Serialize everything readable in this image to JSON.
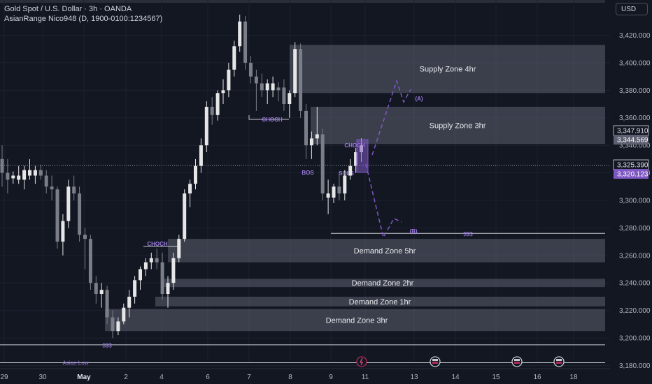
{
  "header": {
    "title": "Gold Spot / U.S. Dollar · 3h · OANDA",
    "indicator": "AsianRange Nico948 (D, 1900-0100:1234567)",
    "currency_button": "USD"
  },
  "chart_data": {
    "type": "candlestick",
    "ylim": [
      3172,
      3442
    ],
    "y_ticks": [
      3180,
      3200,
      3220,
      3240,
      3260,
      3280,
      3300,
      3320,
      3340,
      3360,
      3380,
      3400,
      3420
    ],
    "x_tick_labels": [
      "29",
      "30",
      "May",
      "2",
      "4",
      "6",
      "7",
      "8",
      "9",
      "11",
      "13",
      "14",
      "15",
      "16",
      "18"
    ],
    "price_labels": {
      "last_price": "3,325.390",
      "high_marker": "3,347.910",
      "tag_1": "3,344.569",
      "tag_2": "3,320.123"
    },
    "candles": [
      {
        "o": 3330,
        "h": 3340,
        "l": 3310,
        "c": 3320,
        "hl": false
      },
      {
        "o": 3320,
        "h": 3330,
        "l": 3305,
        "c": 3315,
        "hl": false
      },
      {
        "o": 3316,
        "h": 3321,
        "l": 3312,
        "c": 3318,
        "hl": true
      },
      {
        "o": 3318,
        "h": 3325,
        "l": 3312,
        "c": 3315,
        "hl": true
      },
      {
        "o": 3315,
        "h": 3325,
        "l": 3308,
        "c": 3322,
        "hl": true
      },
      {
        "o": 3322,
        "h": 3330,
        "l": 3315,
        "c": 3318,
        "hl": true
      },
      {
        "o": 3318,
        "h": 3325,
        "l": 3312,
        "c": 3322,
        "hl": true
      },
      {
        "o": 3322,
        "h": 3326,
        "l": 3315,
        "c": 3318,
        "hl": false
      },
      {
        "o": 3318,
        "h": 3322,
        "l": 3305,
        "c": 3310,
        "hl": false
      },
      {
        "o": 3310,
        "h": 3318,
        "l": 3300,
        "c": 3308,
        "hl": false
      },
      {
        "o": 3308,
        "h": 3310,
        "l": 3265,
        "c": 3270,
        "hl": false
      },
      {
        "o": 3270,
        "h": 3290,
        "l": 3260,
        "c": 3285,
        "hl": true
      },
      {
        "o": 3285,
        "h": 3315,
        "l": 3280,
        "c": 3310,
        "hl": true
      },
      {
        "o": 3310,
        "h": 3318,
        "l": 3300,
        "c": 3305,
        "hl": false
      },
      {
        "o": 3305,
        "h": 3310,
        "l": 3270,
        "c": 3275,
        "hl": false
      },
      {
        "o": 3275,
        "h": 3280,
        "l": 3250,
        "c": 3272,
        "hl": false
      },
      {
        "o": 3272,
        "h": 3275,
        "l": 3235,
        "c": 3240,
        "hl": false
      },
      {
        "o": 3240,
        "h": 3245,
        "l": 3225,
        "c": 3232,
        "hl": false
      },
      {
        "o": 3232,
        "h": 3240,
        "l": 3222,
        "c": 3235,
        "hl": true
      },
      {
        "o": 3235,
        "h": 3238,
        "l": 3210,
        "c": 3215,
        "hl": false
      },
      {
        "o": 3215,
        "h": 3220,
        "l": 3200,
        "c": 3205,
        "hl": false
      },
      {
        "o": 3205,
        "h": 3215,
        "l": 3202,
        "c": 3212,
        "hl": true
      },
      {
        "o": 3212,
        "h": 3225,
        "l": 3210,
        "c": 3222,
        "hl": true
      },
      {
        "o": 3222,
        "h": 3235,
        "l": 3215,
        "c": 3230,
        "hl": true
      },
      {
        "o": 3230,
        "h": 3245,
        "l": 3225,
        "c": 3242,
        "hl": true
      },
      {
        "o": 3242,
        "h": 3252,
        "l": 3235,
        "c": 3250,
        "hl": true
      },
      {
        "o": 3250,
        "h": 3258,
        "l": 3245,
        "c": 3255,
        "hl": true
      },
      {
        "o": 3255,
        "h": 3262,
        "l": 3250,
        "c": 3258,
        "hl": true
      },
      {
        "o": 3258,
        "h": 3265,
        "l": 3250,
        "c": 3255,
        "hl": false
      },
      {
        "o": 3255,
        "h": 3262,
        "l": 3228,
        "c": 3232,
        "hl": false
      },
      {
        "o": 3232,
        "h": 3245,
        "l": 3222,
        "c": 3240,
        "hl": true
      },
      {
        "o": 3240,
        "h": 3262,
        "l": 3235,
        "c": 3258,
        "hl": true
      },
      {
        "o": 3258,
        "h": 3275,
        "l": 3255,
        "c": 3272,
        "hl": true
      },
      {
        "o": 3272,
        "h": 3308,
        "l": 3270,
        "c": 3305,
        "hl": true
      },
      {
        "o": 3305,
        "h": 3315,
        "l": 3295,
        "c": 3312,
        "hl": true
      },
      {
        "o": 3312,
        "h": 3330,
        "l": 3308,
        "c": 3325,
        "hl": true
      },
      {
        "o": 3325,
        "h": 3345,
        "l": 3320,
        "c": 3340,
        "hl": true
      },
      {
        "o": 3340,
        "h": 3372,
        "l": 3335,
        "c": 3368,
        "hl": true
      },
      {
        "o": 3368,
        "h": 3375,
        "l": 3355,
        "c": 3362,
        "hl": false
      },
      {
        "o": 3362,
        "h": 3380,
        "l": 3358,
        "c": 3378,
        "hl": true
      },
      {
        "o": 3378,
        "h": 3388,
        "l": 3370,
        "c": 3380,
        "hl": true
      },
      {
        "o": 3380,
        "h": 3400,
        "l": 3375,
        "c": 3395,
        "hl": true
      },
      {
        "o": 3395,
        "h": 3416,
        "l": 3390,
        "c": 3412,
        "hl": true
      },
      {
        "o": 3412,
        "h": 3435,
        "l": 3408,
        "c": 3430,
        "hl": true
      },
      {
        "o": 3430,
        "h": 3434,
        "l": 3395,
        "c": 3400,
        "hl": false
      },
      {
        "o": 3400,
        "h": 3405,
        "l": 3385,
        "c": 3390,
        "hl": false
      },
      {
        "o": 3390,
        "h": 3395,
        "l": 3365,
        "c": 3385,
        "hl": false
      },
      {
        "o": 3385,
        "h": 3392,
        "l": 3375,
        "c": 3380,
        "hl": false
      },
      {
        "o": 3380,
        "h": 3388,
        "l": 3370,
        "c": 3385,
        "hl": true
      },
      {
        "o": 3385,
        "h": 3390,
        "l": 3375,
        "c": 3380,
        "hl": true
      },
      {
        "o": 3380,
        "h": 3386,
        "l": 3372,
        "c": 3382,
        "hl": false
      },
      {
        "o": 3382,
        "h": 3388,
        "l": 3365,
        "c": 3370,
        "hl": false
      },
      {
        "o": 3370,
        "h": 3380,
        "l": 3360,
        "c": 3378,
        "hl": true
      },
      {
        "o": 3378,
        "h": 3415,
        "l": 3375,
        "c": 3410,
        "hl": true
      },
      {
        "o": 3410,
        "h": 3414,
        "l": 3360,
        "c": 3365,
        "hl": false
      },
      {
        "o": 3365,
        "h": 3370,
        "l": 3330,
        "c": 3340,
        "hl": false
      },
      {
        "o": 3340,
        "h": 3350,
        "l": 3330,
        "c": 3345,
        "hl": true
      },
      {
        "o": 3345,
        "h": 3368,
        "l": 3340,
        "c": 3348,
        "hl": true
      },
      {
        "o": 3348,
        "h": 3352,
        "l": 3300,
        "c": 3305,
        "hl": false
      },
      {
        "o": 3305,
        "h": 3315,
        "l": 3290,
        "c": 3302,
        "hl": true
      },
      {
        "o": 3302,
        "h": 3312,
        "l": 3298,
        "c": 3310,
        "hl": true
      },
      {
        "o": 3310,
        "h": 3320,
        "l": 3300,
        "c": 3305,
        "hl": false
      },
      {
        "o": 3305,
        "h": 3322,
        "l": 3300,
        "c": 3318,
        "hl": true
      },
      {
        "o": 3318,
        "h": 3330,
        "l": 3315,
        "c": 3325,
        "hl": true
      },
      {
        "o": 3325,
        "h": 3338,
        "l": 3320,
        "c": 3335,
        "hl": true
      },
      {
        "o": 3335,
        "h": 3345,
        "l": 3328,
        "c": 3340,
        "hl": true
      }
    ],
    "zones": [
      {
        "label": "Supply Zone 4hr",
        "top": 3413,
        "bottom": 3378
      },
      {
        "label": "Supply Zone 3hr",
        "top": 3368,
        "bottom": 3341
      },
      {
        "label": "Demand Zone 5hr",
        "top": 3272,
        "bottom": 3255
      },
      {
        "label": "Demand Zone 2hr",
        "top": 3243,
        "bottom": 3237
      },
      {
        "label": "Demand Zone 1hr",
        "top": 3230,
        "bottom": 3223
      },
      {
        "label": "Demand Zone 3hr",
        "top": 3221,
        "bottom": 3205
      }
    ],
    "levels": [
      {
        "label": "$$$",
        "price": 3276
      },
      {
        "label": "$$$",
        "price": 3195
      }
    ],
    "annotations": [
      {
        "label": "CHOCH",
        "price": 3361
      },
      {
        "label": "CHOCH",
        "price": 3268
      },
      {
        "label": "BOS",
        "price": 3318
      },
      {
        "label": "SQLS",
        "price": 3318
      },
      {
        "label": "CHOCH",
        "price": 3339
      },
      {
        "label": "(A)",
        "price": 3377
      },
      {
        "label": "(B)",
        "price": 3278
      }
    ],
    "session_label": "Asian Low",
    "session_price": 3182,
    "events": [
      "flash",
      "flag",
      "flag",
      "flag"
    ]
  },
  "colors": {
    "background": "#131722",
    "grid": "#1e2230",
    "candle_white": "#e6e6e6",
    "candle_gray": "#7a7e88",
    "zone_fill": "#5d6070",
    "accent_purple": "#7e57c2",
    "text": "#d1d4dc"
  }
}
